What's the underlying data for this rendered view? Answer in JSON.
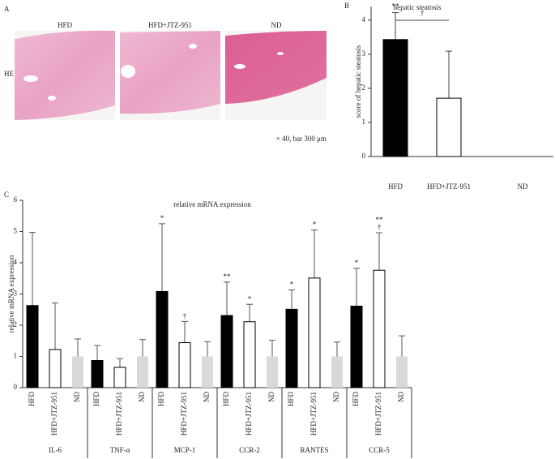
{
  "panel_labels": [
    "A",
    "B",
    "C"
  ],
  "panel_a": {
    "image_labels": [
      "HFD",
      "HFD+JTZ-951",
      "ND"
    ],
    "row_label": "HE",
    "caption": "× 40, bar 300 μm"
  },
  "chart_data": [
    {
      "type": "bar",
      "title": "hepatic steatosis",
      "ylabel": "score of hepatic steatosis",
      "categories": [
        "HFD",
        "HFD+JTZ-951",
        "ND"
      ],
      "values": [
        3.43,
        1.71,
        0
      ],
      "errors": [
        0.79,
        1.38,
        null
      ],
      "colors": [
        "#000000",
        "#ffffff",
        "#ffffff"
      ],
      "annotations": [
        "**",
        null,
        null
      ],
      "comparison": {
        "from": 0,
        "to": 1,
        "label": "†"
      },
      "ylim": [
        0,
        4.4
      ],
      "yticks": [
        0,
        1,
        2,
        3,
        4
      ]
    },
    {
      "type": "grouped_bar",
      "title": "relative mRNA expression",
      "ylabel": "relative mRNA expression",
      "categories": [
        "IL-6",
        "TNF-α",
        "MCP-1",
        "CCR-2",
        "RANTES",
        "CCR-5"
      ],
      "series": [
        {
          "name": "HFD",
          "color": "#000000",
          "values": [
            2.63,
            0.87,
            3.08,
            2.31,
            2.51,
            2.61
          ],
          "errors": [
            2.34,
            0.48,
            2.17,
            1.07,
            0.62,
            1.21
          ],
          "annotations": [
            null,
            null,
            "*",
            "**",
            "*",
            "*"
          ]
        },
        {
          "name": "HFD+JTZ-951",
          "color": "#ffffff",
          "values": [
            1.22,
            0.65,
            1.44,
            2.11,
            3.51,
            3.76
          ],
          "errors": [
            1.49,
            0.28,
            0.68,
            0.56,
            1.54,
            1.2
          ],
          "annotations": [
            null,
            null,
            "†",
            "*",
            "*",
            "**\n†"
          ]
        },
        {
          "name": "ND",
          "color": "#d9d9d9",
          "values": [
            1,
            1,
            1,
            1,
            1,
            1
          ],
          "errors": [
            0.56,
            0.54,
            0.47,
            0.52,
            0.46,
            0.66
          ],
          "annotations": [
            null,
            null,
            null,
            null,
            null,
            null
          ]
        }
      ],
      "ylim": [
        0,
        6
      ],
      "yticks": [
        0,
        1,
        2,
        3,
        4,
        5,
        6
      ]
    }
  ]
}
